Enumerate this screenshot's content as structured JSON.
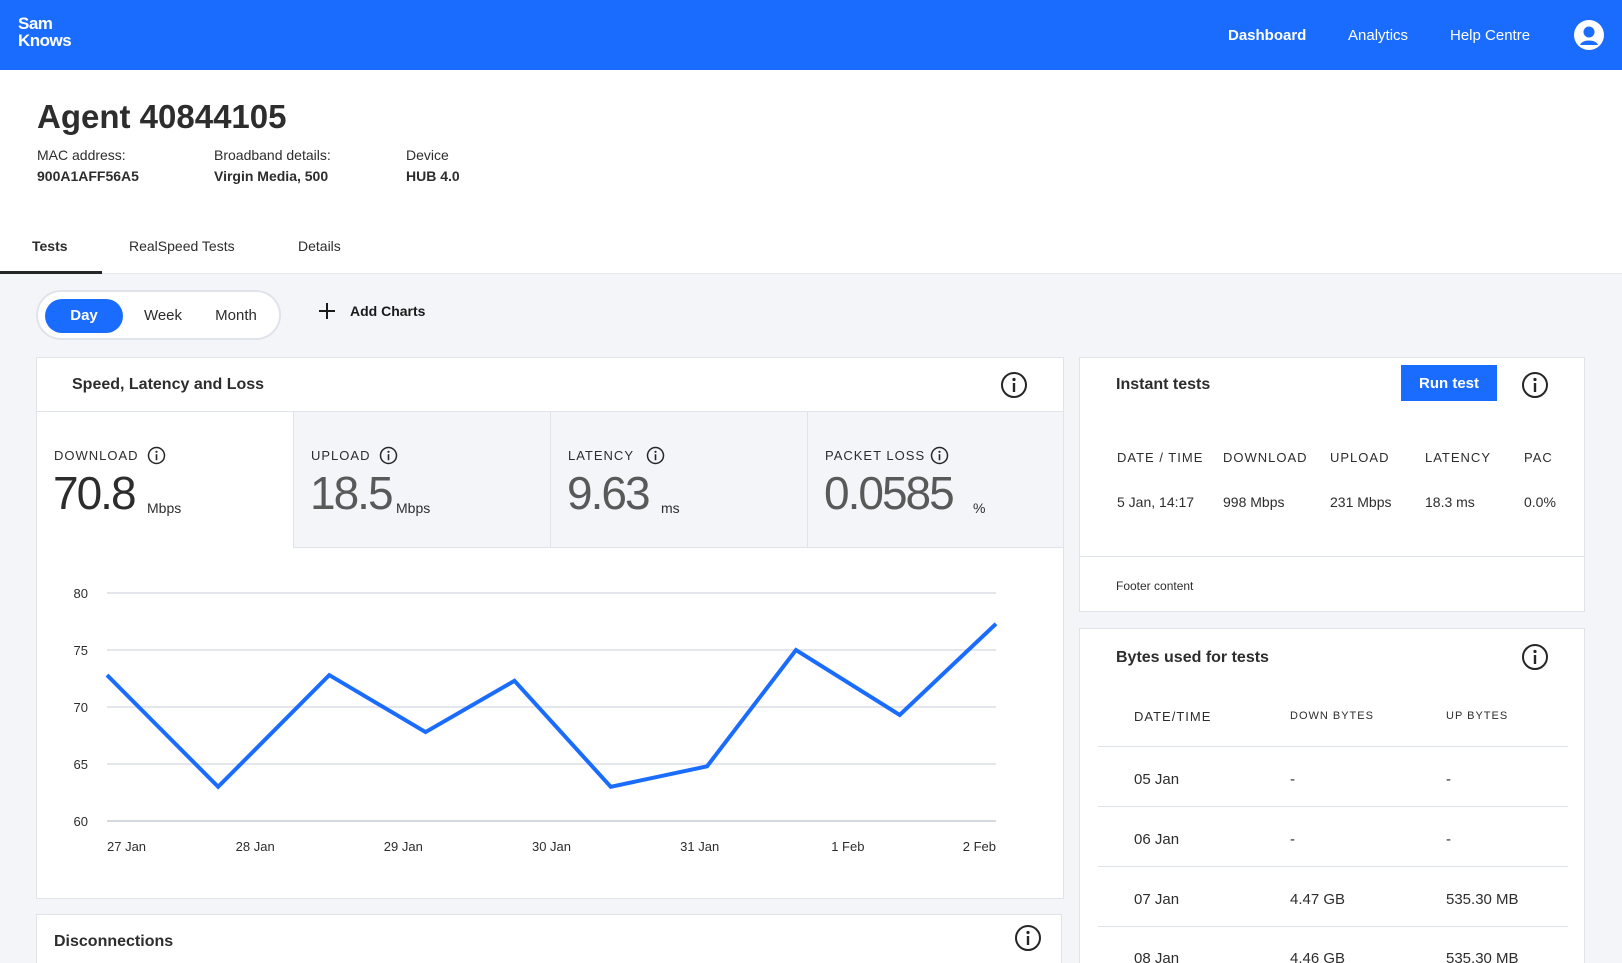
{
  "header": {
    "logo_line1": "Sam",
    "logo_line2": "Knows",
    "nav": [
      "Dashboard",
      "Analytics",
      "Help Centre"
    ]
  },
  "agent": {
    "title": "Agent 40844105",
    "mac_label": "MAC address:",
    "mac_value": "900A1AFF56A5",
    "broadband_label": "Broadband details:",
    "broadband_value": "Virgin Media, 500",
    "device_label": "Device",
    "device_value": "HUB 4.0"
  },
  "tabs": [
    "Tests",
    "RealSpeed Tests",
    "Details"
  ],
  "range": {
    "day": "Day",
    "week": "Week",
    "month": "Month"
  },
  "add_charts": "Add Charts",
  "speed_card": {
    "title": "Speed, Latency and Loss",
    "metrics": [
      {
        "label": "DOWNLOAD",
        "value": "70.8",
        "unit": "Mbps"
      },
      {
        "label": "UPLOAD",
        "value": "18.5",
        "unit": "Mbps"
      },
      {
        "label": "LATENCY",
        "value": "9.63",
        "unit": "ms"
      },
      {
        "label": "PACKET LOSS",
        "value": "0.0585",
        "unit": "%"
      }
    ]
  },
  "chart_data": {
    "type": "line",
    "categories": [
      "27 Jan",
      "28 Jan",
      "29 Jan",
      "30 Jan",
      "31 Jan",
      "1 Feb",
      "2 Feb"
    ],
    "x": [
      0,
      0.75,
      1.5,
      2.15,
      2.75,
      3.4,
      4.05,
      4.65,
      5.35,
      6
    ],
    "values": [
      72.8,
      63.0,
      72.8,
      67.8,
      72.3,
      63.0,
      64.8,
      75.0,
      69.3,
      77.3
    ],
    "yticks": [
      60,
      65,
      70,
      75,
      80
    ],
    "ylim": [
      60,
      80
    ],
    "grid": true,
    "color": "#1a6cff"
  },
  "disconnections": {
    "title": "Disconnections"
  },
  "instant_tests": {
    "title": "Instant tests",
    "button": "Run test",
    "headers": [
      "DATE / TIME",
      "DOWNLOAD",
      "UPLOAD",
      "LATENCY",
      "PAC"
    ],
    "row": [
      "5 Jan, 14:17",
      "998 Mbps",
      "231 Mbps",
      "18.3 ms",
      "0.0%"
    ],
    "footer": "Footer content"
  },
  "bytes": {
    "title": "Bytes used for tests",
    "headers": [
      "DATE/TIME",
      "DOWN BYTES",
      "UP BYTES"
    ],
    "rows": [
      [
        "05 Jan",
        "-",
        "-"
      ],
      [
        "06 Jan",
        "-",
        "-"
      ],
      [
        "07 Jan",
        "4.47 GB",
        "535.30 MB"
      ],
      [
        "08 Jan",
        "4.46 GB",
        "535.30 MB"
      ]
    ]
  },
  "colors": {
    "brand": "#1a6cff",
    "background": "#f3f5f9",
    "border": "#dfe3ea"
  }
}
